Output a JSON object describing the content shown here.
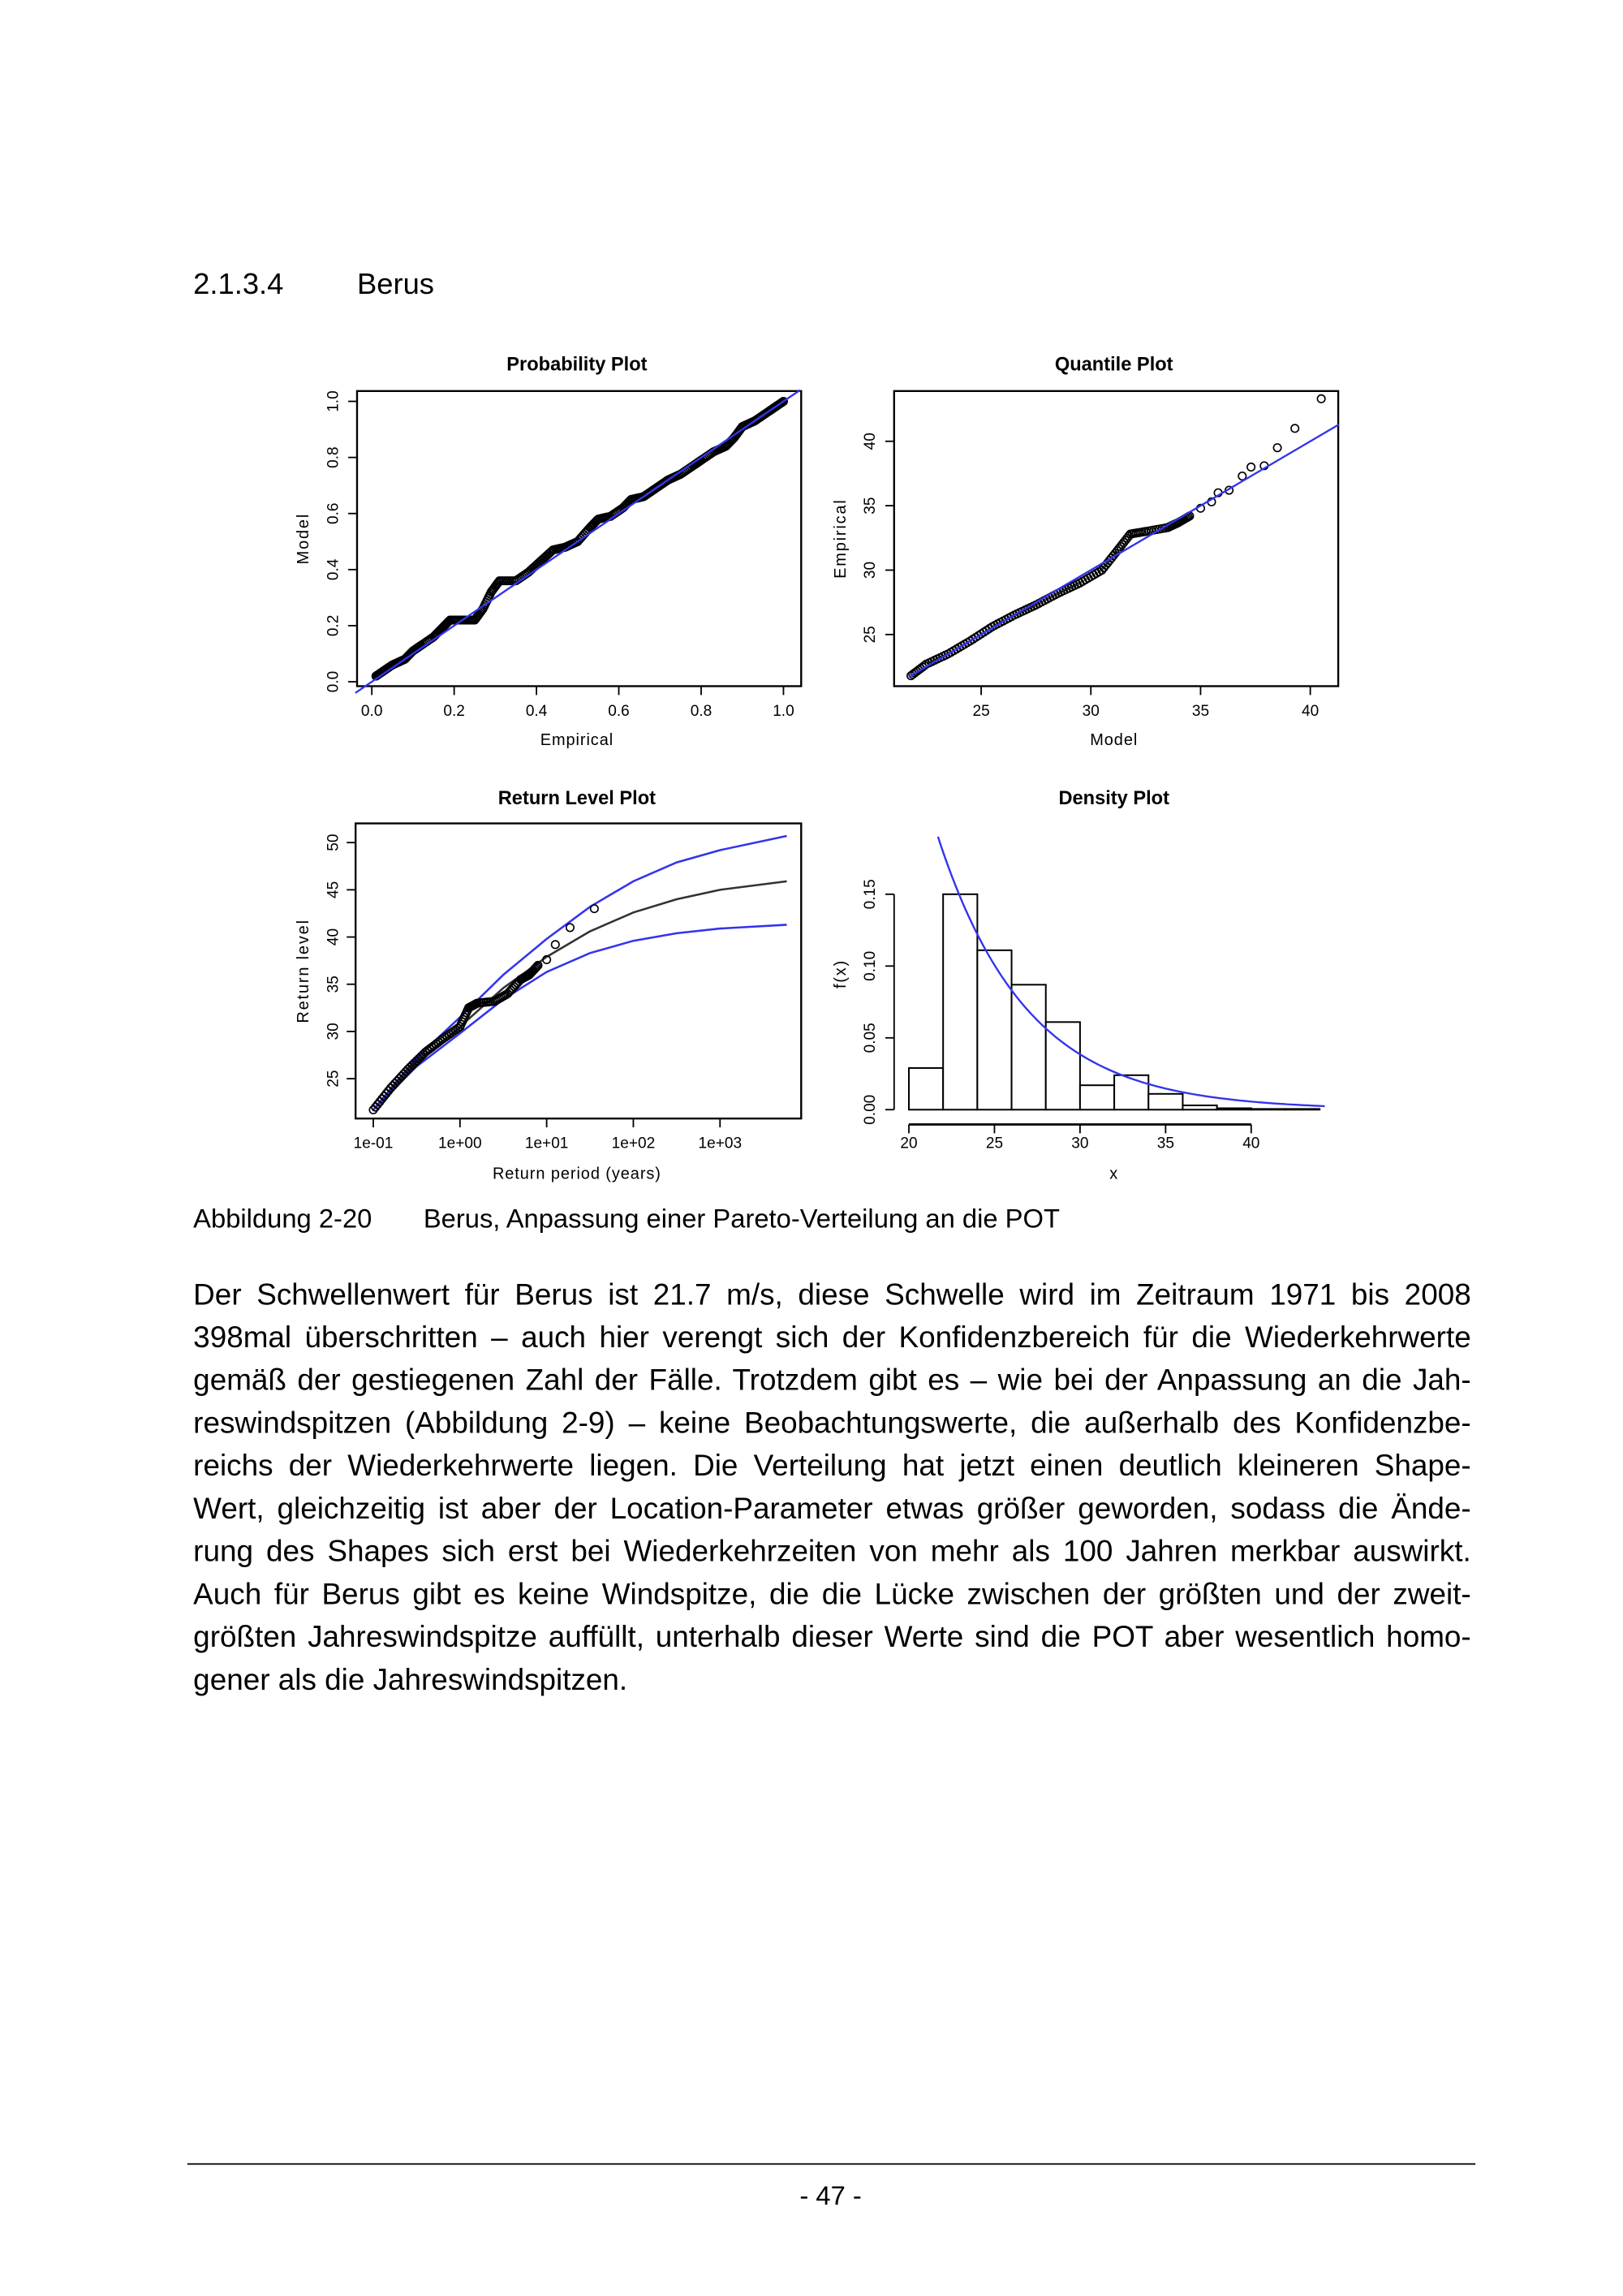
{
  "heading": {
    "number": "2.1.3.4",
    "title": "Berus"
  },
  "figure_caption": {
    "label": "Abbildung 2-20",
    "text": "Berus, Anpassung einer Pareto-Verteilung an die POT"
  },
  "paragraph_lines": [
    "Der Schwellenwert für Berus ist 21.7 m/s, diese Schwelle wird im Zeitraum 1971 bis 2008",
    "398mal überschritten – auch hier verengt sich der Konfidenzbereich für die Wiederkehrwerte",
    "gemäß der gestiegenen Zahl der Fälle. Trotzdem gibt es – wie bei der Anpassung an die Jah-",
    "reswindspitzen (Abbildung 2-9) – keine Beobachtungswerte, die außerhalb des Konfidenzbe-",
    "reichs der Wiederkehrwerte liegen. Die Verteilung hat jetzt einen deutlich kleineren Shape-",
    "Wert, gleichzeitig ist aber der Location-Parameter etwas größer geworden, sodass die Ände-",
    "rung des Shapes sich erst bei Wiederkehrzeiten von mehr als 100 Jahren merkbar auswirkt.",
    "Auch für Berus gibt es keine Windspitze, die die Lücke zwischen der größten und der zweit-",
    "größten Jahreswindspitze auffüllt, unterhalb dieser Werte sind die POT aber wesentlich homo-",
    "gener als die Jahreswindspitzen."
  ],
  "page_number": "- 47 -",
  "colors": {
    "fit_line": "#3333ee",
    "points": "#000000"
  },
  "chart_data": [
    {
      "type": "scatter",
      "title": "Probability Plot",
      "xlabel": "Empirical",
      "ylabel": "Model",
      "xlim": [
        0,
        1
      ],
      "ylim": [
        0,
        1
      ],
      "xticks": [
        "0.0",
        "0.2",
        "0.4",
        "0.6",
        "0.8",
        "1.0"
      ],
      "yticks": [
        "0.0",
        "0.2",
        "0.4",
        "0.6",
        "0.8",
        "1.0"
      ],
      "xtick_values": [
        0,
        0.2,
        0.4,
        0.6,
        0.8,
        1.0
      ],
      "ytick_values": [
        0,
        0.2,
        0.4,
        0.6,
        0.8,
        1.0
      ],
      "reference_line": [
        [
          -0.04,
          -0.04
        ],
        [
          1.04,
          1.04
        ]
      ],
      "points": [
        [
          0.01,
          0.02
        ],
        [
          0.03,
          0.04
        ],
        [
          0.05,
          0.06
        ],
        [
          0.08,
          0.08
        ],
        [
          0.1,
          0.11
        ],
        [
          0.12,
          0.13
        ],
        [
          0.15,
          0.16
        ],
        [
          0.17,
          0.19
        ],
        [
          0.19,
          0.22
        ],
        [
          0.22,
          0.22
        ],
        [
          0.25,
          0.22
        ],
        [
          0.27,
          0.26
        ],
        [
          0.29,
          0.32
        ],
        [
          0.31,
          0.36
        ],
        [
          0.35,
          0.36
        ],
        [
          0.38,
          0.39
        ],
        [
          0.41,
          0.43
        ],
        [
          0.44,
          0.47
        ],
        [
          0.47,
          0.48
        ],
        [
          0.5,
          0.5
        ],
        [
          0.53,
          0.55
        ],
        [
          0.55,
          0.58
        ],
        [
          0.58,
          0.59
        ],
        [
          0.61,
          0.62
        ],
        [
          0.63,
          0.65
        ],
        [
          0.66,
          0.66
        ],
        [
          0.69,
          0.69
        ],
        [
          0.72,
          0.72
        ],
        [
          0.75,
          0.74
        ],
        [
          0.78,
          0.77
        ],
        [
          0.8,
          0.79
        ],
        [
          0.83,
          0.82
        ],
        [
          0.86,
          0.84
        ],
        [
          0.88,
          0.87
        ],
        [
          0.9,
          0.91
        ],
        [
          0.93,
          0.93
        ],
        [
          0.96,
          0.96
        ],
        [
          0.98,
          0.98
        ],
        [
          1.0,
          1.0
        ]
      ]
    },
    {
      "type": "scatter",
      "title": "Quantile Plot",
      "xlabel": "Model",
      "ylabel": "Empirical",
      "xlim": [
        21.7,
        41.3
      ],
      "ylim": [
        21.7,
        44.6
      ],
      "xticks": [
        "25",
        "30",
        "35",
        "40"
      ],
      "yticks": [
        "25",
        "30",
        "35",
        "40"
      ],
      "xtick_values": [
        25,
        30,
        35,
        40
      ],
      "ytick_values": [
        25,
        30,
        35,
        40
      ],
      "reference_line": [
        [
          21.7,
          21.7
        ],
        [
          41.3,
          41.3
        ]
      ],
      "points": [
        [
          21.8,
          21.8
        ],
        [
          22.5,
          22.7
        ],
        [
          23.5,
          23.5
        ],
        [
          24.5,
          24.5
        ],
        [
          25.5,
          25.6
        ],
        [
          26.5,
          26.5
        ],
        [
          27.5,
          27.3
        ],
        [
          28.5,
          28.2
        ],
        [
          29.5,
          29
        ],
        [
          30.5,
          30
        ],
        [
          31.2,
          31.5
        ],
        [
          31.8,
          32.8
        ],
        [
          32.5,
          33
        ],
        [
          33.5,
          33.3
        ],
        [
          34,
          33.7
        ],
        [
          34.5,
          34.2
        ],
        [
          35,
          34.8
        ],
        [
          35.5,
          35.3
        ],
        [
          35.8,
          36
        ],
        [
          36.3,
          36.2
        ],
        [
          36.9,
          37.3
        ],
        [
          37.3,
          38
        ],
        [
          37.9,
          38.1
        ],
        [
          38.5,
          39.5
        ],
        [
          39.3,
          41
        ],
        [
          40.5,
          43.3
        ]
      ]
    },
    {
      "type": "line",
      "title": "Return Level Plot",
      "xlabel": "Return period (years)",
      "ylabel": "Return level",
      "x_scale": "log10",
      "xticks": [
        "1e-01",
        "1e+00",
        "1e+01",
        "1e+02",
        "1e+03"
      ],
      "xtick_values": [
        -1,
        0,
        1,
        2,
        3
      ],
      "yticks": [
        "25",
        "30",
        "35",
        "40",
        "45",
        "50"
      ],
      "ytick_values": [
        25,
        30,
        35,
        40,
        45,
        50
      ],
      "series": [
        {
          "name": "estimate",
          "color": "#333333",
          "log10_x": [
            -1,
            -0.5,
            0,
            0.5,
            1,
            1.5,
            2,
            2.5,
            3,
            3.77
          ],
          "y": [
            21.7,
            26.7,
            30.5,
            34.6,
            37.9,
            40.6,
            42.6,
            44,
            45,
            45.9
          ]
        },
        {
          "name": "upper confidence",
          "color": "#3333ee",
          "log10_x": [
            -1,
            -0.5,
            0,
            0.5,
            1,
            1.5,
            2,
            2.5,
            3,
            3.77
          ],
          "y": [
            21.7,
            27.2,
            31.5,
            36,
            39.8,
            43.2,
            45.9,
            47.9,
            49.2,
            50.7
          ]
        },
        {
          "name": "lower confidence",
          "color": "#3333ee",
          "log10_x": [
            -1,
            -0.5,
            0,
            0.5,
            1,
            1.5,
            2,
            2.5,
            3,
            3.77
          ],
          "y": [
            21.7,
            26.3,
            29.8,
            33.4,
            36.3,
            38.3,
            39.6,
            40.4,
            40.9,
            41.3
          ]
        }
      ],
      "points": [
        [
          -1,
          21.7
        ],
        [
          -0.8,
          24
        ],
        [
          -0.6,
          26
        ],
        [
          -0.4,
          27.8
        ],
        [
          -0.2,
          29.2
        ],
        [
          0,
          30.5
        ],
        [
          0.1,
          32.5
        ],
        [
          0.2,
          33
        ],
        [
          0.4,
          33.2
        ],
        [
          0.55,
          34
        ],
        [
          0.7,
          35.5
        ],
        [
          0.8,
          36
        ],
        [
          0.9,
          37
        ],
        [
          1.0,
          37.6
        ],
        [
          1.1,
          39.2
        ],
        [
          1.27,
          41
        ],
        [
          1.55,
          43
        ]
      ]
    },
    {
      "type": "bar",
      "title": "Density Plot",
      "xlabel": "x",
      "ylabel": "f(x)",
      "xticks": [
        "20",
        "25",
        "30",
        "35",
        "40"
      ],
      "xtick_values": [
        20,
        25,
        30,
        35,
        40
      ],
      "yticks": [
        "0.00",
        "0.05",
        "0.10",
        "0.15"
      ],
      "ytick_values": [
        0,
        0.05,
        0.1,
        0.15
      ],
      "bin_edges": [
        20,
        22,
        24,
        26,
        28,
        30,
        32,
        34,
        36,
        38,
        40,
        42,
        44
      ],
      "values": [
        0.029,
        0.15,
        0.111,
        0.087,
        0.061,
        0.017,
        0.024,
        0.011,
        0.003,
        0.001,
        0.0005,
        0.0005
      ],
      "density_curve": {
        "color": "#3333ee",
        "threshold": 21.7,
        "f_at_threshold": 0.19,
        "scale": 5.2,
        "x_end": 44.5
      }
    }
  ]
}
